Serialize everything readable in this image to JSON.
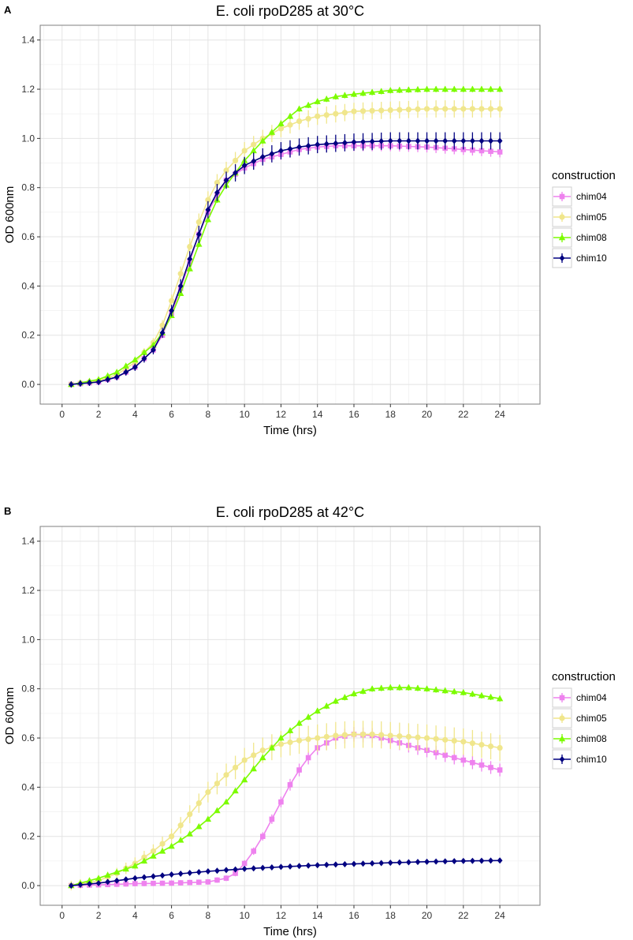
{
  "chart_data": [
    {
      "panel": "A",
      "type": "line",
      "title": "E. coli rpoD285 at 30°C",
      "xlabel": "Time (hrs)",
      "ylabel": "OD 600nm",
      "xlim": [
        -1.2,
        26.2
      ],
      "ylim": [
        -0.08,
        1.46
      ],
      "xticks": [
        0,
        2,
        4,
        6,
        8,
        10,
        12,
        14,
        16,
        18,
        20,
        22,
        24
      ],
      "yticks": [
        "0.0",
        "0.2",
        "0.4",
        "0.6",
        "0.8",
        "1.0",
        "1.2",
        "1.4"
      ],
      "grid": true,
      "legend_title": "construction",
      "legend_position": "right",
      "x_start": 0.5,
      "x_step": 0.5,
      "num_points": 48,
      "series": [
        {
          "name": "chim04",
          "color": "#ee82ee",
          "marker": "square",
          "key_x": [
            0.5,
            2,
            3,
            4,
            5,
            5.5,
            6,
            6.5,
            7,
            7.5,
            8,
            8.5,
            9,
            10,
            11,
            12,
            13,
            14,
            15,
            16,
            18,
            20,
            22,
            24
          ],
          "key_y": [
            0.0,
            0.01,
            0.03,
            0.07,
            0.14,
            0.2,
            0.29,
            0.39,
            0.5,
            0.61,
            0.7,
            0.77,
            0.83,
            0.88,
            0.915,
            0.935,
            0.955,
            0.965,
            0.97,
            0.97,
            0.97,
            0.965,
            0.955,
            0.945
          ],
          "err": 0.022
        },
        {
          "name": "chim05",
          "color": "#f0e68c",
          "marker": "circle",
          "key_x": [
            0.5,
            2,
            3,
            4,
            5,
            5.5,
            6,
            6.5,
            7,
            7.5,
            8,
            8.5,
            9,
            10,
            11,
            12,
            13,
            14,
            15,
            16,
            18,
            20,
            22,
            24
          ],
          "key_y": [
            0.0,
            0.015,
            0.04,
            0.09,
            0.17,
            0.24,
            0.34,
            0.45,
            0.56,
            0.66,
            0.75,
            0.82,
            0.87,
            0.95,
            1.0,
            1.04,
            1.07,
            1.09,
            1.1,
            1.11,
            1.115,
            1.12,
            1.12,
            1.12
          ],
          "err": 0.035
        },
        {
          "name": "chim08",
          "color": "#7cfc00",
          "marker": "triangle",
          "key_x": [
            0.5,
            2,
            3,
            4,
            5,
            5.5,
            6,
            6.5,
            7,
            7.5,
            8,
            8.5,
            9,
            10,
            11,
            12,
            13,
            14,
            15,
            16,
            18,
            20,
            22,
            24
          ],
          "key_y": [
            0.0,
            0.02,
            0.05,
            0.1,
            0.16,
            0.21,
            0.28,
            0.37,
            0.47,
            0.57,
            0.67,
            0.75,
            0.81,
            0.91,
            0.99,
            1.06,
            1.12,
            1.15,
            1.17,
            1.18,
            1.195,
            1.2,
            1.2,
            1.2
          ],
          "err": 0.012
        },
        {
          "name": "chim10",
          "color": "#000080",
          "marker": "diamond",
          "key_x": [
            0.5,
            2,
            3,
            4,
            5,
            5.5,
            6,
            6.5,
            7,
            7.5,
            8,
            8.5,
            9,
            10,
            11,
            12,
            13,
            14,
            15,
            16,
            18,
            20,
            22,
            24
          ],
          "key_y": [
            0.0,
            0.01,
            0.03,
            0.07,
            0.14,
            0.21,
            0.3,
            0.4,
            0.51,
            0.61,
            0.71,
            0.78,
            0.83,
            0.89,
            0.925,
            0.95,
            0.965,
            0.975,
            0.98,
            0.985,
            0.99,
            0.99,
            0.99,
            0.99
          ],
          "err": 0.035
        }
      ]
    },
    {
      "panel": "B",
      "type": "line",
      "title": "E. coli rpoD285 at 42°C",
      "xlabel": "Time (hrs)",
      "ylabel": "OD 600nm",
      "xlim": [
        -1.2,
        26.2
      ],
      "ylim": [
        -0.08,
        1.46
      ],
      "xticks": [
        0,
        2,
        4,
        6,
        8,
        10,
        12,
        14,
        16,
        18,
        20,
        22,
        24
      ],
      "yticks": [
        "0.0",
        "0.2",
        "0.4",
        "0.6",
        "0.8",
        "1.0",
        "1.2",
        "1.4"
      ],
      "grid": true,
      "legend_title": "construction",
      "legend_position": "right",
      "x_start": 0.5,
      "x_step": 0.5,
      "num_points": 48,
      "series": [
        {
          "name": "chim04",
          "color": "#ee82ee",
          "marker": "square",
          "key_x": [
            0.5,
            2,
            4,
            6,
            8,
            9,
            9.5,
            10,
            10.5,
            11,
            11.5,
            12,
            12.5,
            13,
            13.5,
            14,
            15,
            16,
            17,
            18,
            20,
            22,
            24
          ],
          "key_y": [
            0.0,
            0.003,
            0.008,
            0.01,
            0.015,
            0.03,
            0.05,
            0.09,
            0.14,
            0.2,
            0.27,
            0.34,
            0.41,
            0.47,
            0.52,
            0.56,
            0.6,
            0.615,
            0.61,
            0.59,
            0.55,
            0.51,
            0.47
          ],
          "err": 0.03
        },
        {
          "name": "chim05",
          "color": "#f0e68c",
          "marker": "circle",
          "key_x": [
            0.5,
            2,
            3,
            4,
            5,
            6,
            7,
            8,
            9,
            10,
            11,
            12,
            13,
            14,
            15,
            16,
            17,
            18,
            20,
            22,
            24
          ],
          "key_y": [
            0.0,
            0.02,
            0.05,
            0.09,
            0.14,
            0.2,
            0.29,
            0.38,
            0.45,
            0.51,
            0.55,
            0.575,
            0.59,
            0.6,
            0.61,
            0.615,
            0.615,
            0.61,
            0.6,
            0.585,
            0.56
          ],
          "err": 0.055
        },
        {
          "name": "chim08",
          "color": "#7cfc00",
          "marker": "triangle",
          "key_x": [
            0.5,
            2,
            3,
            4,
            5,
            6,
            7,
            8,
            9,
            10,
            11,
            12,
            13,
            14,
            15,
            16,
            17,
            18,
            19,
            20,
            22,
            24
          ],
          "key_y": [
            0.0,
            0.03,
            0.055,
            0.08,
            0.12,
            0.16,
            0.21,
            0.27,
            0.34,
            0.43,
            0.52,
            0.6,
            0.66,
            0.71,
            0.75,
            0.78,
            0.8,
            0.805,
            0.805,
            0.8,
            0.785,
            0.76
          ],
          "err": 0.012
        },
        {
          "name": "chim10",
          "color": "#000080",
          "marker": "diamond",
          "key_x": [
            0.5,
            2,
            4,
            6,
            8,
            10,
            12,
            14,
            16,
            18,
            20,
            22,
            24
          ],
          "key_y": [
            0.0,
            0.01,
            0.03,
            0.045,
            0.058,
            0.068,
            0.076,
            0.083,
            0.088,
            0.093,
            0.097,
            0.1,
            0.102
          ],
          "err": 0.018
        }
      ]
    }
  ]
}
